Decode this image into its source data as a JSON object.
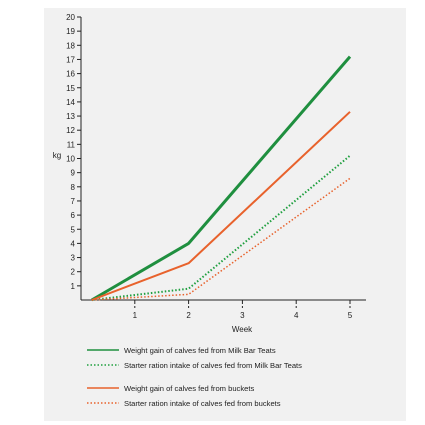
{
  "chart_data": {
    "type": "line",
    "title": "",
    "xlabel": "Week",
    "ylabel": "kg",
    "x": [
      0,
      2,
      3,
      5
    ],
    "xlim": [
      0,
      5
    ],
    "ylim": [
      0,
      20
    ],
    "x_ticks": [
      "1",
      "2",
      "3",
      "4",
      "5"
    ],
    "y_ticks": [
      "1",
      "2",
      "3",
      "4",
      "5",
      "6",
      "7",
      "8",
      "9",
      "10",
      "11",
      "12",
      "13",
      "14",
      "15",
      "16",
      "17",
      "18",
      "19",
      "20"
    ],
    "grid": false,
    "legend_placement": "bottom",
    "series": [
      {
        "name": "Weight gain of calves fed from Milk Bar Teats",
        "x": [
          0.2,
          2.0,
          5.0
        ],
        "y": [
          0,
          4.0,
          17.2
        ],
        "color": "#1f8f3f",
        "style": "solid",
        "width": 3
      },
      {
        "name": "Starter ration intake of calves fed from Milk Bar Teats",
        "x": [
          0.2,
          2.0,
          5.0
        ],
        "y": [
          0,
          0.8,
          10.2
        ],
        "color": "#1f9f3f",
        "style": "dotted",
        "width": 2
      },
      {
        "name": "Weight gain of calves fed from buckets",
        "x": [
          0.2,
          2.0,
          5.0
        ],
        "y": [
          0,
          2.6,
          13.3
        ],
        "color": "#e8622c",
        "style": "solid",
        "width": 2
      },
      {
        "name": "Starter ration intake of calves fed from buckets",
        "x": [
          0.2,
          2.0,
          5.0
        ],
        "y": [
          0,
          0.4,
          8.6
        ],
        "color": "#e8622c",
        "style": "dotted",
        "width": 1.5
      }
    ]
  }
}
